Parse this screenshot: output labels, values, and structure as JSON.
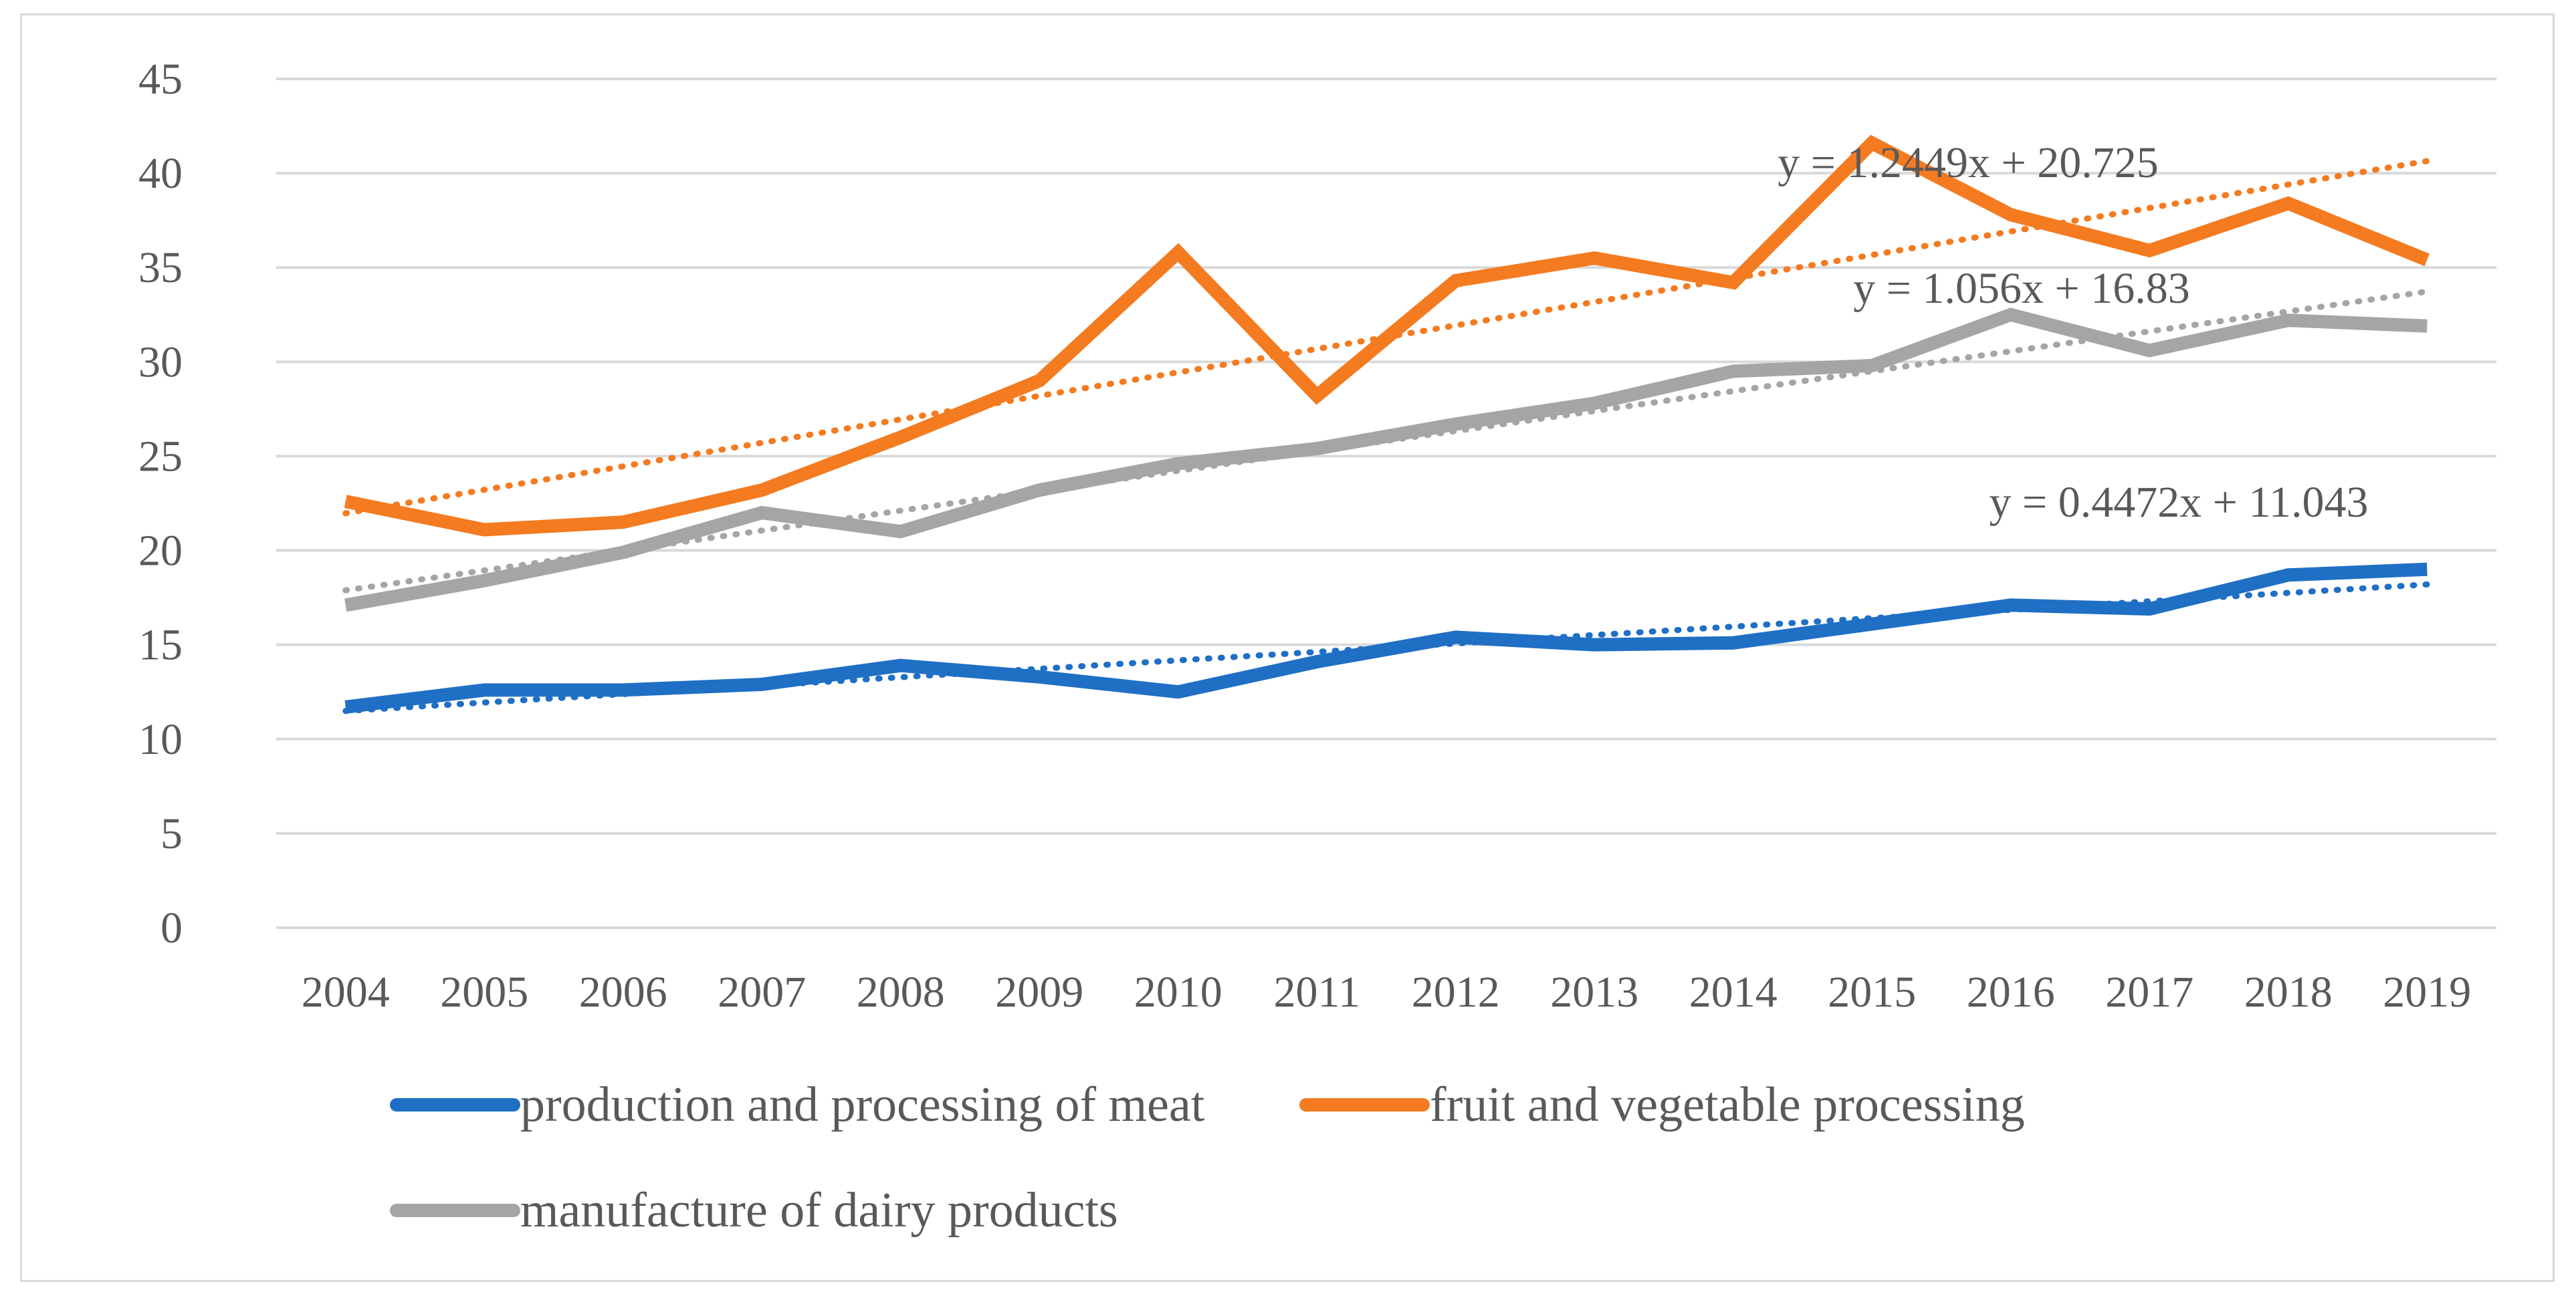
{
  "chart_data": {
    "type": "line",
    "title": "",
    "xlabel": "",
    "ylabel": "",
    "categories": [
      "2004",
      "2005",
      "2006",
      "2007",
      "2008",
      "2009",
      "2010",
      "2011",
      "2012",
      "2013",
      "2014",
      "2015",
      "2016",
      "2017",
      "2018",
      "2019"
    ],
    "ylim": [
      0,
      45
    ],
    "yticks": [
      0,
      5,
      10,
      15,
      20,
      25,
      30,
      35,
      40,
      45
    ],
    "grid": true,
    "legend_position": "bottom",
    "series": [
      {
        "name": "production and processing of meat",
        "color": "#1f6fc5",
        "values": [
          11.7,
          12.6,
          12.6,
          12.9,
          13.9,
          13.3,
          12.5,
          14.1,
          15.4,
          15.0,
          15.1,
          16.1,
          17.1,
          16.9,
          18.7,
          19.0
        ],
        "trendline": {
          "slope": 0.4472,
          "intercept": 11.043,
          "label": "y = 0.4472x + 11.043"
        }
      },
      {
        "name": "fruit and vegetable processing",
        "color": "#f47b20",
        "values": [
          22.6,
          21.1,
          21.5,
          23.2,
          26.0,
          29.0,
          35.8,
          28.2,
          34.3,
          35.5,
          34.2,
          41.6,
          37.8,
          35.9,
          38.4,
          35.4
        ],
        "trendline": {
          "slope": 1.2449,
          "intercept": 20.725,
          "label": "y = 1.2449x + 20.725"
        }
      },
      {
        "name": "manufacture of dairy products",
        "color": "#a5a5a5",
        "values": [
          17.1,
          18.4,
          19.9,
          22.0,
          21.0,
          23.2,
          24.6,
          25.4,
          26.7,
          27.8,
          29.5,
          29.8,
          32.5,
          30.6,
          32.2,
          31.9
        ],
        "trendline": {
          "slope": 1.056,
          "intercept": 16.83,
          "label": "y = 1.056x + 16.83"
        }
      }
    ]
  }
}
